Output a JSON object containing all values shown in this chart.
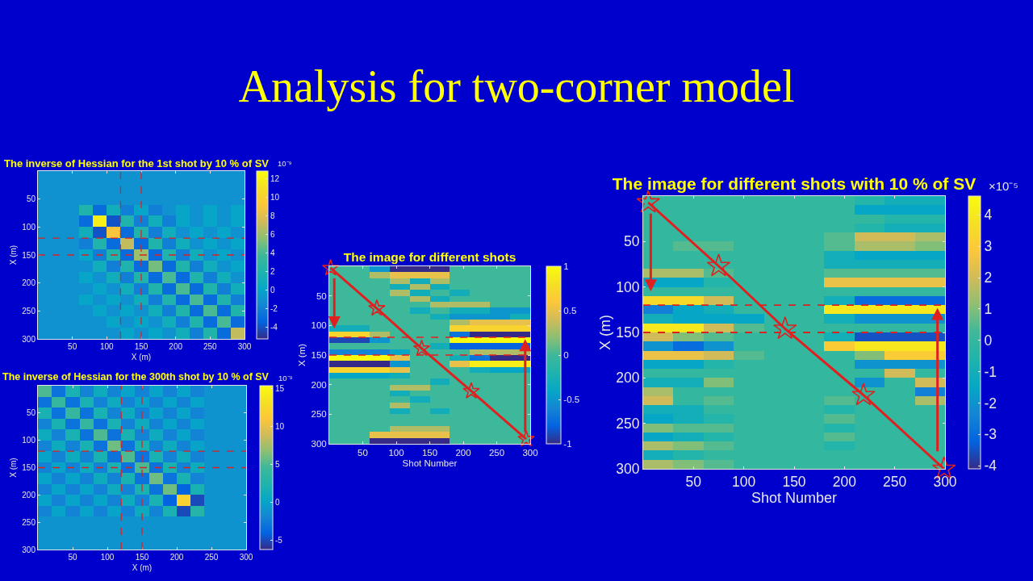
{
  "chart_data": [
    {
      "type": "other",
      "title": "Analysis for two-corner model"
    },
    {
      "type": "heatmap",
      "title": "The inverse of Hessian for the 1st shot by 10 % of SV",
      "xlabel": "X (m)",
      "ylabel": "X (m)",
      "clabel": "10⁻⁹",
      "x": [
        10,
        30,
        50,
        70,
        90,
        110,
        130,
        150,
        170,
        190,
        210,
        230,
        250,
        270,
        290
      ],
      "cells": [
        [
          -1,
          -1,
          -1,
          -1,
          -1,
          -1,
          -1,
          -1,
          -1,
          -1,
          -1,
          -1,
          -1,
          -1,
          -1
        ],
        [
          -1,
          -1,
          -1,
          -1,
          -1,
          -1,
          -1,
          -1,
          -1,
          -1,
          -1,
          -1,
          -1,
          -1,
          -1
        ],
        [
          -1,
          -1,
          -1,
          -1,
          -1,
          -1,
          -1,
          -1,
          -1,
          -1,
          -1,
          -1,
          -1,
          -1,
          -1
        ],
        [
          -1,
          -1,
          -1,
          2,
          -3,
          1,
          -2,
          0,
          -2,
          -1,
          0,
          -1,
          0,
          -1,
          0
        ],
        [
          -1,
          -1,
          -1,
          -3,
          12,
          -4,
          2,
          -2,
          1,
          -2,
          0,
          -1,
          0,
          -1,
          0
        ],
        [
          -1,
          -1,
          -1,
          1,
          -4,
          9,
          -3,
          2,
          -2,
          1,
          -1,
          0,
          -1,
          0,
          -1
        ],
        [
          -1,
          -1,
          -1,
          -2,
          2,
          -3,
          7,
          -3,
          2,
          -2,
          1,
          -1,
          0,
          -1,
          0
        ],
        [
          -1,
          -1,
          -1,
          0,
          -2,
          2,
          -3,
          6,
          -3,
          2,
          -2,
          1,
          -1,
          0,
          -1
        ],
        [
          -1,
          -1,
          -1,
          -1,
          1,
          -2,
          2,
          -3,
          5,
          -3,
          2,
          -2,
          1,
          -1,
          0
        ],
        [
          -1,
          -1,
          -1,
          0,
          -1,
          1,
          -2,
          2,
          -3,
          4,
          -3,
          2,
          -2,
          1,
          -1
        ],
        [
          -1,
          -1,
          -1,
          -1,
          0,
          -1,
          1,
          -2,
          2,
          -3,
          4,
          -3,
          2,
          -2,
          1
        ],
        [
          -1,
          -1,
          -1,
          0,
          -1,
          0,
          -1,
          1,
          -2,
          2,
          -3,
          4,
          -3,
          2,
          -2
        ],
        [
          -1,
          -1,
          -1,
          -1,
          0,
          -1,
          0,
          -1,
          1,
          -2,
          2,
          -3,
          4,
          -3,
          2
        ],
        [
          -1,
          -1,
          -1,
          -1,
          -1,
          0,
          -1,
          0,
          -1,
          1,
          -2,
          2,
          -3,
          4,
          -3
        ],
        [
          -1,
          -1,
          -1,
          -1,
          -1,
          -1,
          0,
          -1,
          0,
          -1,
          1,
          -2,
          2,
          -3,
          7
        ]
      ],
      "colors": [
        "#352a87",
        "#0363e1",
        "#1485d4",
        "#06a7c6",
        "#1fb3ad",
        "#3db89a",
        "#8cbf73",
        "#d1bb59",
        "#fcc73a",
        "#f5e024",
        "#f9fb0e"
      ],
      "clim": [
        -5.3,
        12.8
      ],
      "cticks": [
        -4,
        -2,
        0,
        2,
        4,
        6,
        8,
        10,
        12
      ],
      "xlim": [
        0,
        300
      ],
      "ylim": [
        300,
        0
      ],
      "xticks": [
        50,
        100,
        150,
        200,
        250,
        300
      ],
      "yticks": [
        50,
        100,
        150,
        200,
        250,
        300
      ],
      "ref_lines": [
        {
          "axis": "x",
          "value": 120,
          "color": "#e02020",
          "line_style": "dashed"
        },
        {
          "axis": "x",
          "value": 150,
          "color": "#e02020",
          "line_style": "dashed"
        },
        {
          "axis": "y",
          "value": 120,
          "color": "#e02020",
          "line_style": "dashed"
        },
        {
          "axis": "y",
          "value": 150,
          "color": "#e02020",
          "line_style": "dashed"
        }
      ]
    },
    {
      "type": "heatmap",
      "title": "The inverse of Hessian for the 300th shot by 10 % of SV",
      "xlabel": "X (m)",
      "ylabel": "X (m)",
      "clabel": "10⁻⁹",
      "x": [
        10,
        30,
        50,
        70,
        90,
        110,
        130,
        150,
        170,
        190,
        210,
        230,
        250,
        270,
        290
      ],
      "cells": [
        [
          5,
          -3,
          2,
          -2,
          1,
          -2,
          0,
          -2,
          0,
          -2,
          0,
          -2,
          -1,
          -1,
          -1
        ],
        [
          -3,
          4,
          -3,
          2,
          -2,
          1,
          -2,
          0,
          -2,
          0,
          -2,
          0,
          -1,
          -1,
          -1
        ],
        [
          2,
          -3,
          4,
          -3,
          2,
          -2,
          1,
          -2,
          0,
          -2,
          0,
          -2,
          -1,
          -1,
          -1
        ],
        [
          -2,
          2,
          -3,
          4,
          -3,
          2,
          -2,
          1,
          -2,
          0,
          -2,
          0,
          -1,
          -1,
          -1
        ],
        [
          1,
          -2,
          2,
          -3,
          5,
          -3,
          2,
          -2,
          1,
          -2,
          0,
          -2,
          -1,
          -1,
          -1
        ],
        [
          -2,
          1,
          -2,
          2,
          -3,
          6,
          -3,
          2,
          -2,
          1,
          -2,
          0,
          -1,
          -1,
          -1
        ],
        [
          0,
          -2,
          1,
          -2,
          2,
          -3,
          5,
          -3,
          2,
          -2,
          1,
          -2,
          -1,
          -1,
          -1
        ],
        [
          -2,
          0,
          -2,
          1,
          -2,
          2,
          -3,
          5,
          -3,
          2,
          -2,
          1,
          -1,
          -1,
          -1
        ],
        [
          0,
          -2,
          0,
          -2,
          1,
          -2,
          2,
          -3,
          6,
          -3,
          2,
          -2,
          -1,
          -1,
          -1
        ],
        [
          -2,
          0,
          -2,
          0,
          -2,
          1,
          -2,
          2,
          -3,
          6,
          -4,
          2,
          -1,
          -1,
          -1
        ],
        [
          0,
          -2,
          0,
          -2,
          0,
          -2,
          1,
          -2,
          2,
          -4,
          12,
          -5,
          -1,
          -1,
          -1
        ],
        [
          -2,
          0,
          -2,
          0,
          -2,
          0,
          -2,
          1,
          -2,
          2,
          -5,
          3,
          -1,
          -1,
          -1
        ],
        [
          -1,
          -1,
          -1,
          -1,
          -1,
          -1,
          -1,
          -1,
          -1,
          -1,
          -1,
          -1,
          -1,
          -1,
          -1
        ],
        [
          -1,
          -1,
          -1,
          -1,
          -1,
          -1,
          -1,
          -1,
          -1,
          -1,
          -1,
          -1,
          -1,
          -1,
          -1
        ],
        [
          -1,
          -1,
          -1,
          -1,
          -1,
          -1,
          -1,
          -1,
          -1,
          -1,
          -1,
          -1,
          -1,
          -1,
          -1
        ]
      ],
      "colors": [
        "#352a87",
        "#0363e1",
        "#1485d4",
        "#06a7c6",
        "#1fb3ad",
        "#3db89a",
        "#8cbf73",
        "#d1bb59",
        "#fcc73a",
        "#f5e024",
        "#f9fb0e"
      ],
      "clim": [
        -6.2,
        15.4
      ],
      "cticks": [
        -5,
        0,
        5,
        10,
        15
      ],
      "xlim": [
        0,
        300
      ],
      "ylim": [
        300,
        0
      ],
      "xticks": [
        50,
        100,
        150,
        200,
        250,
        300
      ],
      "yticks": [
        50,
        100,
        150,
        200,
        250,
        300
      ],
      "ref_lines": [
        {
          "axis": "x",
          "value": 120,
          "color": "#e02020",
          "line_style": "dashed"
        },
        {
          "axis": "x",
          "value": 150,
          "color": "#e02020",
          "line_style": "dashed"
        },
        {
          "axis": "y",
          "value": 120,
          "color": "#e02020",
          "line_style": "dashed"
        },
        {
          "axis": "y",
          "value": 150,
          "color": "#e02020",
          "line_style": "dashed"
        }
      ]
    },
    {
      "type": "heatmap",
      "title": "The image for different shots",
      "xlabel": "Shot Number",
      "ylabel": "X (m)",
      "x": [
        15,
        45,
        75,
        105,
        135,
        165,
        195,
        225,
        255,
        285
      ],
      "cells": [
        [
          0,
          0,
          -0.5,
          -1,
          -1,
          -1,
          0,
          0,
          0,
          0
        ],
        [
          0,
          0,
          0.3,
          0.5,
          0.5,
          0.5,
          0,
          0,
          0,
          0
        ],
        [
          0,
          0,
          0,
          0.3,
          -0.3,
          0.3,
          0,
          0,
          0,
          0
        ],
        [
          0,
          0,
          0,
          -0.3,
          0.3,
          -0.3,
          0,
          0,
          0,
          0
        ],
        [
          0,
          0,
          0,
          0.3,
          -0.3,
          0,
          -0.3,
          0,
          0,
          0
        ],
        [
          0,
          0,
          0,
          0,
          0.3,
          -0.3,
          0,
          0,
          0,
          0
        ],
        [
          0,
          0,
          0,
          0,
          0,
          0.3,
          0.3,
          0.3,
          0,
          0
        ],
        [
          0,
          0,
          0,
          0,
          -0.3,
          0,
          -0.3,
          -0.3,
          -0.5,
          -0.5
        ],
        [
          0,
          0,
          0,
          0,
          0,
          -0.3,
          -0.5,
          -0.5,
          -0.5,
          -0.3
        ],
        [
          0,
          0,
          0,
          0,
          0,
          0,
          0.3,
          0.5,
          0.5,
          0.5
        ],
        [
          -0.3,
          -0.3,
          0,
          0,
          0,
          0,
          0.7,
          0.7,
          0.7,
          0.7
        ],
        [
          0.7,
          0.7,
          0.3,
          0,
          0,
          0,
          -0.7,
          -1,
          -1,
          -1
        ],
        [
          -0.9,
          -0.9,
          -0.5,
          0,
          0,
          0,
          1,
          1,
          1,
          1
        ],
        [
          0,
          0,
          0,
          0,
          0,
          -0.3,
          -0.8,
          -0.8,
          -0.8,
          -0.8
        ],
        [
          -0.6,
          -0.6,
          -0.6,
          -0.4,
          0,
          0,
          0,
          0.3,
          0.3,
          0.3
        ],
        [
          1,
          1,
          1,
          0.5,
          0,
          0,
          -0.3,
          -0.7,
          -1,
          -1
        ],
        [
          -1,
          -1,
          -1,
          -0.5,
          0,
          0,
          0.5,
          0.9,
          0.9,
          0.9
        ],
        [
          0.7,
          0.7,
          0.7,
          0.5,
          0,
          0,
          0,
          -0.3,
          -0.4,
          -0.4
        ],
        [
          -0.4,
          -0.4,
          -0.4,
          -0.3,
          0,
          0,
          0,
          0,
          0,
          0
        ],
        [
          0,
          0,
          0,
          0,
          0,
          -0.3,
          0,
          0,
          0,
          0
        ],
        [
          0,
          0,
          0,
          0.3,
          0.3,
          0,
          0,
          0,
          0,
          0
        ],
        [
          0,
          0,
          0,
          -0.3,
          0,
          0,
          0,
          0,
          0,
          0
        ],
        [
          0,
          0,
          0,
          0,
          -0.3,
          0,
          0,
          0,
          0,
          0
        ],
        [
          0,
          0,
          0,
          0.3,
          0,
          0,
          0,
          0,
          0,
          0
        ],
        [
          0,
          0,
          0,
          -0.3,
          0,
          -0.3,
          0,
          0,
          0,
          0
        ],
        [
          0,
          0,
          0,
          0,
          0,
          0,
          0,
          0,
          0,
          0
        ],
        [
          0,
          0,
          0,
          0,
          0,
          0,
          0,
          0,
          0,
          0
        ],
        [
          0,
          0,
          0,
          0.3,
          0.3,
          0.3,
          0,
          0,
          0,
          0
        ],
        [
          0,
          0,
          0.5,
          0.5,
          0.5,
          0.5,
          0,
          0,
          0,
          0
        ],
        [
          0,
          0,
          -1,
          -1,
          -1,
          -1,
          0,
          0,
          0,
          0
        ]
      ],
      "colors": [
        "#352a87",
        "#0363e1",
        "#1485d4",
        "#06a7c6",
        "#1fb3ad",
        "#3db89a",
        "#8cbf73",
        "#d1bb59",
        "#fcc73a",
        "#f5e024",
        "#f9fb0e"
      ],
      "clim": [
        -1,
        1
      ],
      "cticks": [
        -1,
        -0.5,
        0,
        0.5,
        1
      ],
      "xlim": [
        0,
        300
      ],
      "ylim": [
        300,
        0
      ],
      "xticks": [
        50,
        100,
        150,
        200,
        250,
        300
      ],
      "yticks": [
        50,
        100,
        150,
        200,
        250,
        300
      ],
      "marker": "star",
      "series": [
        {
          "type": "line",
          "color": "#e02020",
          "x": [
            2,
            71,
            138,
            212,
            294
          ],
          "values": [
            3,
            71,
            139,
            211,
            292
          ]
        }
      ],
      "ref_lines": [
        {
          "axis": "y",
          "value": 120,
          "color": "#e02020",
          "line_style": "dashed"
        },
        {
          "axis": "y",
          "value": 150,
          "color": "#e02020",
          "line_style": "dashed"
        }
      ]
    },
    {
      "type": "heatmap",
      "title": "The image for different shots with 10 % of SV",
      "xlabel": "Shot Number",
      "ylabel": "X (m)",
      "clabel": "×10⁻⁵",
      "x": [
        15,
        45,
        75,
        105,
        135,
        165,
        195,
        225,
        255,
        285
      ],
      "cells": [
        [
          0,
          0,
          0,
          0,
          0,
          0,
          0,
          -0.5,
          -1,
          -1
        ],
        [
          0,
          0,
          0,
          0,
          0,
          0,
          0,
          -1.5,
          -1.5,
          -1.5
        ],
        [
          0,
          0,
          0,
          0,
          0,
          0,
          0,
          0,
          -0.5,
          -0.5
        ],
        [
          0,
          0,
          0,
          0,
          0,
          0,
          0,
          -0.5,
          -1,
          -1
        ],
        [
          0,
          0,
          0,
          0,
          0,
          0,
          0.5,
          2,
          2,
          1.5
        ],
        [
          0,
          0.5,
          0.5,
          0,
          0,
          0,
          0.5,
          1.5,
          1.5,
          1
        ],
        [
          0,
          0,
          0,
          0,
          0,
          0,
          -1,
          -1.5,
          -1.5,
          -1.5
        ],
        [
          0,
          0,
          0,
          0,
          0,
          0,
          -1,
          -1,
          -1,
          -1
        ],
        [
          1.5,
          1.5,
          0.5,
          0,
          0,
          0,
          0.5,
          0.5,
          0.5,
          0.5
        ],
        [
          -1.5,
          -1.5,
          -0.5,
          0,
          0,
          0,
          2.5,
          2.5,
          2.5,
          2.5
        ],
        [
          0,
          0,
          0,
          0,
          0,
          0,
          0,
          0,
          0,
          0
        ],
        [
          3.5,
          3.5,
          2,
          0,
          0,
          0,
          -1,
          -3,
          -3,
          -3
        ],
        [
          -2.5,
          -1.5,
          -1,
          0,
          0,
          0,
          4,
          4,
          4,
          4
        ],
        [
          -1,
          -1.5,
          -1.5,
          -1.5,
          0,
          0,
          -1,
          -2,
          -2,
          -2
        ],
        [
          4,
          4,
          2,
          0.5,
          0,
          0,
          0,
          0,
          0,
          0
        ],
        [
          2,
          1,
          0.5,
          0,
          0,
          0,
          -1,
          -3.5,
          -3.5,
          -3.5
        ],
        [
          -2,
          -3,
          -2,
          0,
          0,
          0,
          3,
          4,
          4,
          4
        ],
        [
          2.5,
          2.5,
          2,
          0.5,
          0,
          0,
          0,
          1,
          3,
          3
        ],
        [
          -1.5,
          -1.5,
          -0.5,
          0,
          0,
          0,
          0,
          -2,
          -2,
          -2
        ],
        [
          0,
          0,
          0,
          0,
          0,
          0,
          0,
          0,
          2,
          0
        ],
        [
          -1,
          -1,
          1,
          0,
          0,
          0,
          0,
          -2,
          0,
          2
        ],
        [
          1.5,
          0,
          0,
          0,
          0,
          0,
          0,
          0,
          0,
          -2.5
        ],
        [
          2,
          0,
          0.5,
          0,
          0,
          0,
          0.5,
          0,
          0,
          1.5
        ],
        [
          -1,
          -1,
          0,
          0,
          0,
          0,
          -0.5,
          0,
          0,
          0
        ],
        [
          -1.5,
          -1,
          -0.5,
          0,
          0,
          0,
          0.5,
          0,
          0,
          0
        ],
        [
          1,
          0.5,
          0.5,
          0,
          0,
          0,
          -0.5,
          0,
          0,
          0
        ],
        [
          -1.5,
          -1,
          -0.5,
          0,
          0,
          0,
          0.5,
          0,
          0,
          0
        ],
        [
          1.5,
          1,
          0.5,
          0,
          0,
          0,
          -0.5,
          0,
          0,
          0
        ],
        [
          -1,
          -0.5,
          0,
          0,
          0,
          0,
          0,
          0,
          0,
          0
        ],
        [
          1.5,
          1,
          0.5,
          0,
          0,
          0,
          0,
          0,
          0,
          0
        ]
      ],
      "colors": [
        "#352a87",
        "#0363e1",
        "#1485d4",
        "#06a7c6",
        "#1fb3ad",
        "#3db89a",
        "#8cbf73",
        "#d1bb59",
        "#fcc73a",
        "#f5e024",
        "#f9fb0e"
      ],
      "clim": [
        -4.1,
        4.6
      ],
      "cticks": [
        -4,
        -3,
        -2,
        -1,
        0,
        1,
        2,
        3,
        4
      ],
      "xlim": [
        0,
        300
      ],
      "ylim": [
        300,
        0
      ],
      "xticks": [
        50,
        100,
        150,
        200,
        250,
        300
      ],
      "yticks": [
        50,
        100,
        150,
        200,
        250,
        300
      ],
      "marker": "star",
      "series": [
        {
          "type": "line",
          "color": "#e02020",
          "x": [
            5,
            75,
            141,
            219,
            299
          ],
          "values": [
            7,
            77,
            146,
            219,
            300
          ]
        }
      ],
      "ref_lines": [
        {
          "axis": "y",
          "value": 120,
          "color": "#e02020",
          "line_style": "dashed"
        },
        {
          "axis": "y",
          "value": 150,
          "color": "#e02020",
          "line_style": "dashed"
        }
      ]
    }
  ]
}
